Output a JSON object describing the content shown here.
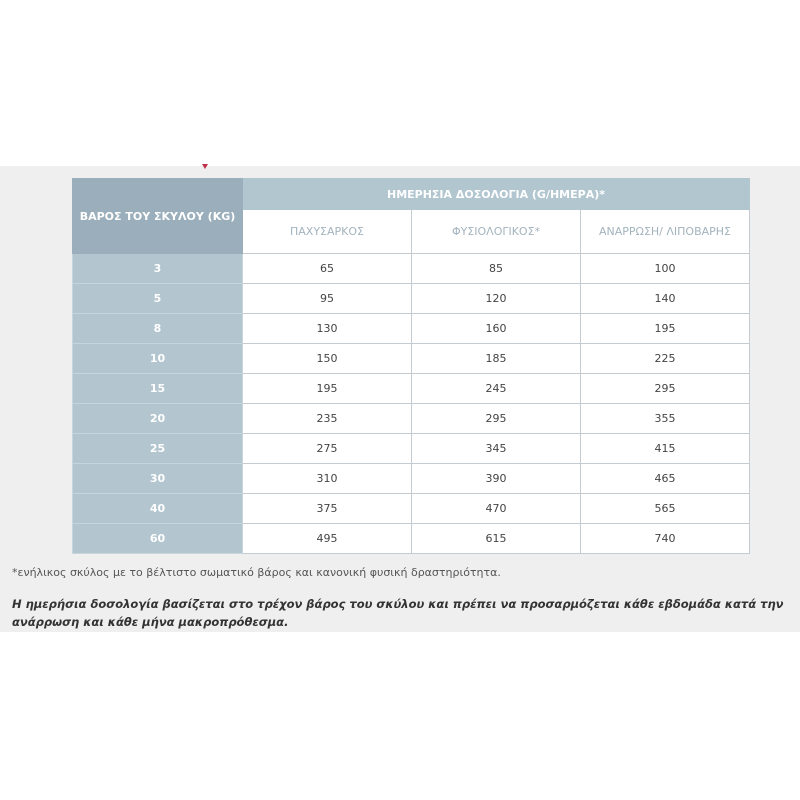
{
  "table": {
    "weight_header": "ΒΑΡΟΣ ΤΟΥ ΣΚΥΛΟΥ (KG)",
    "dosage_header": "ΗΜΕΡΗΣΙΑ ΔΟΣΟΛΟΓΙΑ (G/ΗΜΕΡΑ)*",
    "columns": [
      "ΠΑΧΥΣΑΡΚΟΣ",
      "ΦΥΣΙΟΛΟΓΙΚΟΣ*",
      "ΑΝΑΡΡΩΣΗ/ ΛΙΠΟΒΑΡΗΣ"
    ],
    "rows": [
      [
        "3",
        "65",
        "85",
        "100"
      ],
      [
        "5",
        "95",
        "120",
        "140"
      ],
      [
        "8",
        "130",
        "160",
        "195"
      ],
      [
        "10",
        "150",
        "185",
        "225"
      ],
      [
        "15",
        "195",
        "245",
        "295"
      ],
      [
        "20",
        "235",
        "295",
        "355"
      ],
      [
        "25",
        "275",
        "345",
        "415"
      ],
      [
        "30",
        "310",
        "390",
        "465"
      ],
      [
        "40",
        "375",
        "470",
        "565"
      ],
      [
        "60",
        "495",
        "615",
        "740"
      ]
    ]
  },
  "footnote": "*ενήλικος σκύλος με το βέλτιστο σωματικό βάρος και κανονική φυσική δραστηριότητα.",
  "note": "Η ημερήσια δοσολογία βασίζεται στο τρέχον βάρος του σκύλου και πρέπει να προσαρμόζεται κάθε εβδομάδα κατά την ανάρρωση και κάθε μήνα μακροπρόθεσμα."
}
